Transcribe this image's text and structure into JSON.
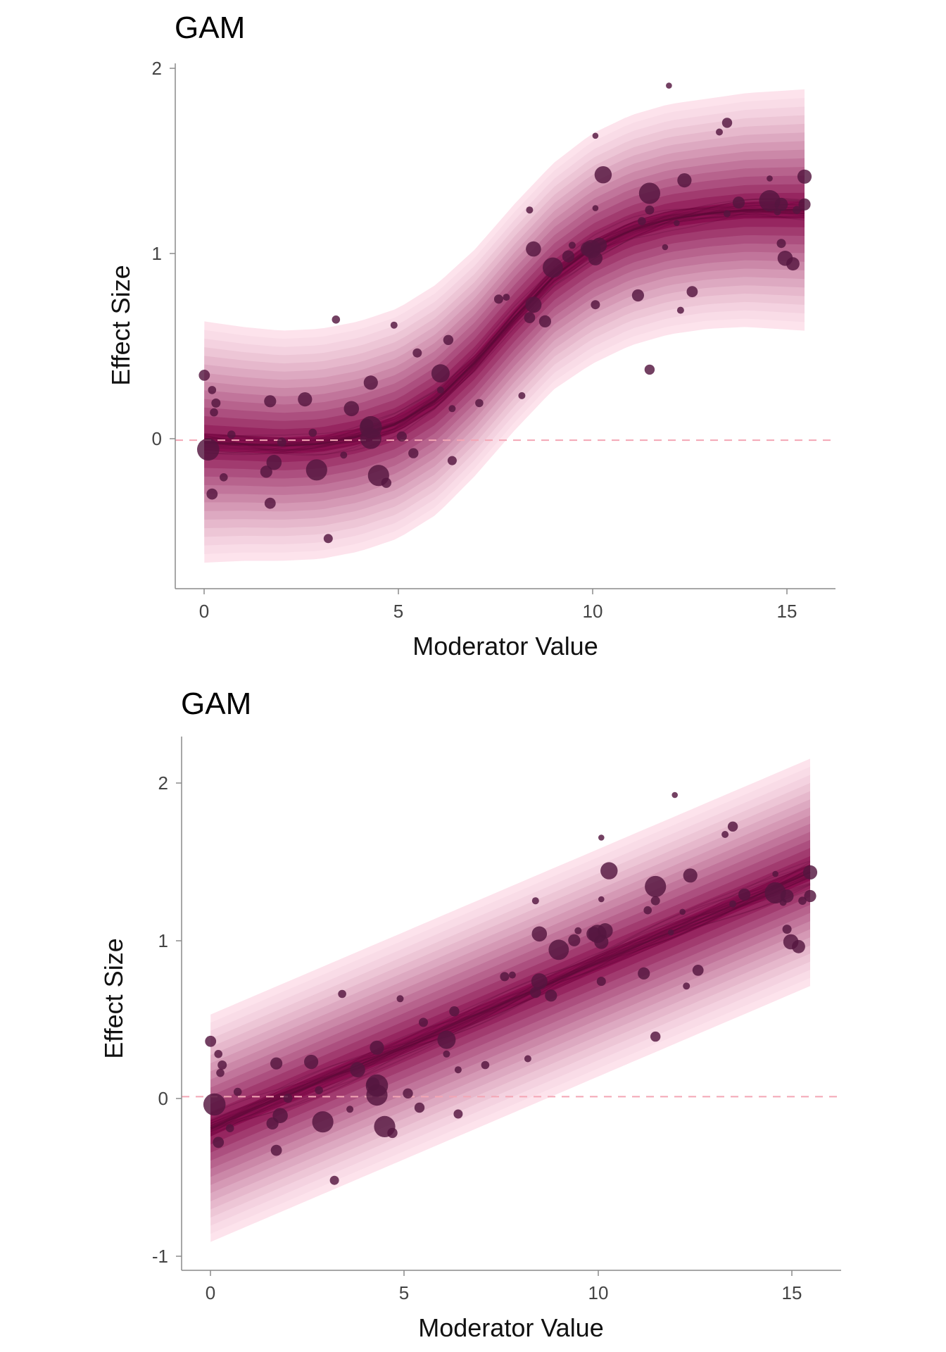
{
  "colors": {
    "band_outer": "#fde3ec",
    "band_inner": "#8a1050",
    "spaghetti": "#5c0a38",
    "points": "#54163f",
    "zero_line": "#f4a6b5"
  },
  "chart_data": [
    {
      "type": "scatter",
      "title": "GAM",
      "xlabel": "Moderator Value",
      "ylabel": "Effect Size",
      "xlim": [
        -0.75,
        16.3
      ],
      "ylim": [
        -0.8,
        2.03
      ],
      "xticks": [
        "0",
        "5",
        "10",
        "15"
      ],
      "yticks": [
        "0",
        "1",
        "2"
      ],
      "reference_line_y": 0,
      "fit": {
        "shape": "sigmoid",
        "x": [
          0.0,
          1.0,
          2.0,
          3.0,
          4.0,
          5.0,
          6.0,
          7.0,
          8.0,
          9.0,
          10.0,
          11.0,
          12.0,
          13.0,
          14.0,
          15.5
        ],
        "median": [
          -0.01,
          -0.02,
          -0.03,
          -0.02,
          0.02,
          0.09,
          0.22,
          0.42,
          0.66,
          0.88,
          1.03,
          1.13,
          1.19,
          1.22,
          1.24,
          1.24
        ],
        "outer_halfwidth": [
          0.65,
          0.63,
          0.62,
          0.62,
          0.62,
          0.62,
          0.62,
          0.61,
          0.61,
          0.61,
          0.62,
          0.62,
          0.62,
          0.62,
          0.63,
          0.65
        ]
      },
      "points": [
        {
          "x": 0.0,
          "y": 0.35,
          "size": 11
        },
        {
          "x": 0.1,
          "y": -0.05,
          "size": 22
        },
        {
          "x": 0.2,
          "y": 0.27,
          "size": 8
        },
        {
          "x": 0.25,
          "y": 0.15,
          "size": 8
        },
        {
          "x": 0.3,
          "y": 0.2,
          "size": 9
        },
        {
          "x": 0.2,
          "y": -0.29,
          "size": 11
        },
        {
          "x": 0.5,
          "y": -0.2,
          "size": 8
        },
        {
          "x": 0.7,
          "y": 0.03,
          "size": 8
        },
        {
          "x": 1.7,
          "y": 0.21,
          "size": 12
        },
        {
          "x": 1.6,
          "y": -0.17,
          "size": 12
        },
        {
          "x": 1.8,
          "y": -0.12,
          "size": 15
        },
        {
          "x": 1.7,
          "y": -0.34,
          "size": 11
        },
        {
          "x": 2.0,
          "y": -0.01,
          "size": 9
        },
        {
          "x": 2.6,
          "y": 0.22,
          "size": 14
        },
        {
          "x": 2.8,
          "y": 0.04,
          "size": 8
        },
        {
          "x": 2.9,
          "y": -0.16,
          "size": 21
        },
        {
          "x": 3.2,
          "y": -0.53,
          "size": 9
        },
        {
          "x": 3.4,
          "y": 0.65,
          "size": 8
        },
        {
          "x": 3.6,
          "y": -0.08,
          "size": 7
        },
        {
          "x": 3.8,
          "y": 0.17,
          "size": 15
        },
        {
          "x": 4.2,
          "y": 0.08,
          "size": 13
        },
        {
          "x": 4.3,
          "y": 0.31,
          "size": 14
        },
        {
          "x": 4.3,
          "y": 0.07,
          "size": 22
        },
        {
          "x": 4.3,
          "y": 0.01,
          "size": 21
        },
        {
          "x": 4.5,
          "y": -0.19,
          "size": 21
        },
        {
          "x": 4.7,
          "y": -0.23,
          "size": 10
        },
        {
          "x": 4.9,
          "y": 0.62,
          "size": 7
        },
        {
          "x": 5.1,
          "y": 0.02,
          "size": 10
        },
        {
          "x": 5.4,
          "y": -0.07,
          "size": 10
        },
        {
          "x": 5.5,
          "y": 0.47,
          "size": 9
        },
        {
          "x": 6.1,
          "y": 0.36,
          "size": 18
        },
        {
          "x": 6.3,
          "y": 0.54,
          "size": 10
        },
        {
          "x": 6.4,
          "y": -0.11,
          "size": 9
        },
        {
          "x": 6.4,
          "y": 0.17,
          "size": 7
        },
        {
          "x": 6.1,
          "y": 0.27,
          "size": 7
        },
        {
          "x": 7.1,
          "y": 0.2,
          "size": 8
        },
        {
          "x": 7.6,
          "y": 0.76,
          "size": 9
        },
        {
          "x": 7.8,
          "y": 0.77,
          "size": 7
        },
        {
          "x": 8.2,
          "y": 0.24,
          "size": 7
        },
        {
          "x": 8.4,
          "y": 1.24,
          "size": 7
        },
        {
          "x": 8.4,
          "y": 0.66,
          "size": 11
        },
        {
          "x": 8.5,
          "y": 1.03,
          "size": 15
        },
        {
          "x": 8.5,
          "y": 0.73,
          "size": 16
        },
        {
          "x": 8.8,
          "y": 0.64,
          "size": 12
        },
        {
          "x": 9.0,
          "y": 0.93,
          "size": 20
        },
        {
          "x": 9.4,
          "y": 0.99,
          "size": 12
        },
        {
          "x": 9.5,
          "y": 1.05,
          "size": 7
        },
        {
          "x": 9.9,
          "y": 1.03,
          "size": 14
        },
        {
          "x": 10.0,
          "y": 1.03,
          "size": 18
        },
        {
          "x": 10.2,
          "y": 1.05,
          "size": 15
        },
        {
          "x": 10.1,
          "y": 0.98,
          "size": 14
        },
        {
          "x": 10.1,
          "y": 1.64,
          "size": 6
        },
        {
          "x": 10.1,
          "y": 1.25,
          "size": 6
        },
        {
          "x": 10.1,
          "y": 0.73,
          "size": 9
        },
        {
          "x": 10.3,
          "y": 1.43,
          "size": 17
        },
        {
          "x": 11.2,
          "y": 0.78,
          "size": 12
        },
        {
          "x": 11.3,
          "y": 1.18,
          "size": 8
        },
        {
          "x": 11.5,
          "y": 1.33,
          "size": 21
        },
        {
          "x": 11.5,
          "y": 1.24,
          "size": 9
        },
        {
          "x": 11.5,
          "y": 0.38,
          "size": 10
        },
        {
          "x": 12.0,
          "y": 1.91,
          "size": 6
        },
        {
          "x": 11.9,
          "y": 1.04,
          "size": 6
        },
        {
          "x": 12.2,
          "y": 1.17,
          "size": 6
        },
        {
          "x": 12.4,
          "y": 1.4,
          "size": 14
        },
        {
          "x": 12.3,
          "y": 0.7,
          "size": 7
        },
        {
          "x": 12.6,
          "y": 0.8,
          "size": 11
        },
        {
          "x": 13.3,
          "y": 1.66,
          "size": 7
        },
        {
          "x": 13.5,
          "y": 1.71,
          "size": 10
        },
        {
          "x": 13.5,
          "y": 1.22,
          "size": 7
        },
        {
          "x": 13.8,
          "y": 1.28,
          "size": 12
        },
        {
          "x": 14.6,
          "y": 1.29,
          "size": 21
        },
        {
          "x": 14.6,
          "y": 1.41,
          "size": 6
        },
        {
          "x": 14.9,
          "y": 1.27,
          "size": 13
        },
        {
          "x": 14.9,
          "y": 1.06,
          "size": 9
        },
        {
          "x": 15.0,
          "y": 0.98,
          "size": 15
        },
        {
          "x": 15.2,
          "y": 0.95,
          "size": 13
        },
        {
          "x": 15.3,
          "y": 1.24,
          "size": 8
        },
        {
          "x": 15.5,
          "y": 1.42,
          "size": 14
        },
        {
          "x": 15.5,
          "y": 1.27,
          "size": 12
        },
        {
          "x": 14.8,
          "y": 1.23,
          "size": 7
        }
      ]
    },
    {
      "type": "scatter",
      "title": "GAM",
      "xlabel": "Moderator Value",
      "ylabel": "Effect Size",
      "xlim": [
        -0.75,
        16.3
      ],
      "ylim": [
        -1.1,
        2.28
      ],
      "xticks": [
        "0",
        "5",
        "10",
        "15"
      ],
      "yticks": [
        "-1",
        "0",
        "1",
        "2"
      ],
      "reference_line_y": 0,
      "fit": {
        "shape": "linear",
        "x": [
          0.0,
          15.5
        ],
        "median": [
          -0.2,
          1.42
        ],
        "outer_halfwidth": [
          0.72,
          0.72
        ]
      },
      "points": [
        {
          "x": 0.0,
          "y": 0.35,
          "size": 11
        },
        {
          "x": 0.1,
          "y": -0.05,
          "size": 22
        },
        {
          "x": 0.2,
          "y": 0.27,
          "size": 8
        },
        {
          "x": 0.25,
          "y": 0.15,
          "size": 8
        },
        {
          "x": 0.3,
          "y": 0.2,
          "size": 9
        },
        {
          "x": 0.2,
          "y": -0.29,
          "size": 11
        },
        {
          "x": 0.5,
          "y": -0.2,
          "size": 8
        },
        {
          "x": 0.7,
          "y": 0.03,
          "size": 8
        },
        {
          "x": 1.7,
          "y": 0.21,
          "size": 12
        },
        {
          "x": 1.6,
          "y": -0.17,
          "size": 12
        },
        {
          "x": 1.8,
          "y": -0.12,
          "size": 15
        },
        {
          "x": 1.7,
          "y": -0.34,
          "size": 11
        },
        {
          "x": 2.0,
          "y": -0.01,
          "size": 9
        },
        {
          "x": 2.6,
          "y": 0.22,
          "size": 14
        },
        {
          "x": 2.8,
          "y": 0.04,
          "size": 8
        },
        {
          "x": 2.9,
          "y": -0.16,
          "size": 21
        },
        {
          "x": 3.2,
          "y": -0.53,
          "size": 9
        },
        {
          "x": 3.4,
          "y": 0.65,
          "size": 8
        },
        {
          "x": 3.6,
          "y": -0.08,
          "size": 7
        },
        {
          "x": 3.8,
          "y": 0.17,
          "size": 15
        },
        {
          "x": 4.2,
          "y": 0.08,
          "size": 13
        },
        {
          "x": 4.3,
          "y": 0.31,
          "size": 14
        },
        {
          "x": 4.3,
          "y": 0.07,
          "size": 22
        },
        {
          "x": 4.3,
          "y": 0.01,
          "size": 21
        },
        {
          "x": 4.5,
          "y": -0.19,
          "size": 21
        },
        {
          "x": 4.7,
          "y": -0.23,
          "size": 10
        },
        {
          "x": 4.9,
          "y": 0.62,
          "size": 7
        },
        {
          "x": 5.1,
          "y": 0.02,
          "size": 10
        },
        {
          "x": 5.4,
          "y": -0.07,
          "size": 10
        },
        {
          "x": 5.5,
          "y": 0.47,
          "size": 9
        },
        {
          "x": 6.1,
          "y": 0.36,
          "size": 18
        },
        {
          "x": 6.3,
          "y": 0.54,
          "size": 10
        },
        {
          "x": 6.4,
          "y": -0.11,
          "size": 9
        },
        {
          "x": 6.4,
          "y": 0.17,
          "size": 7
        },
        {
          "x": 6.1,
          "y": 0.27,
          "size": 7
        },
        {
          "x": 7.1,
          "y": 0.2,
          "size": 8
        },
        {
          "x": 7.6,
          "y": 0.76,
          "size": 9
        },
        {
          "x": 7.8,
          "y": 0.77,
          "size": 7
        },
        {
          "x": 8.2,
          "y": 0.24,
          "size": 7
        },
        {
          "x": 8.4,
          "y": 1.24,
          "size": 7
        },
        {
          "x": 8.4,
          "y": 0.66,
          "size": 11
        },
        {
          "x": 8.5,
          "y": 1.03,
          "size": 15
        },
        {
          "x": 8.5,
          "y": 0.73,
          "size": 16
        },
        {
          "x": 8.8,
          "y": 0.64,
          "size": 12
        },
        {
          "x": 9.0,
          "y": 0.93,
          "size": 20
        },
        {
          "x": 9.4,
          "y": 0.99,
          "size": 12
        },
        {
          "x": 9.5,
          "y": 1.05,
          "size": 7
        },
        {
          "x": 9.9,
          "y": 1.03,
          "size": 14
        },
        {
          "x": 10.0,
          "y": 1.03,
          "size": 18
        },
        {
          "x": 10.2,
          "y": 1.05,
          "size": 15
        },
        {
          "x": 10.1,
          "y": 0.98,
          "size": 14
        },
        {
          "x": 10.1,
          "y": 1.64,
          "size": 6
        },
        {
          "x": 10.1,
          "y": 1.25,
          "size": 6
        },
        {
          "x": 10.1,
          "y": 0.73,
          "size": 9
        },
        {
          "x": 10.3,
          "y": 1.43,
          "size": 17
        },
        {
          "x": 11.2,
          "y": 0.78,
          "size": 12
        },
        {
          "x": 11.3,
          "y": 1.18,
          "size": 8
        },
        {
          "x": 11.5,
          "y": 1.33,
          "size": 21
        },
        {
          "x": 11.5,
          "y": 1.24,
          "size": 9
        },
        {
          "x": 11.5,
          "y": 0.38,
          "size": 10
        },
        {
          "x": 12.0,
          "y": 1.91,
          "size": 6
        },
        {
          "x": 11.9,
          "y": 1.04,
          "size": 6
        },
        {
          "x": 12.2,
          "y": 1.17,
          "size": 6
        },
        {
          "x": 12.4,
          "y": 1.4,
          "size": 14
        },
        {
          "x": 12.3,
          "y": 0.7,
          "size": 7
        },
        {
          "x": 12.6,
          "y": 0.8,
          "size": 11
        },
        {
          "x": 13.3,
          "y": 1.66,
          "size": 7
        },
        {
          "x": 13.5,
          "y": 1.71,
          "size": 10
        },
        {
          "x": 13.5,
          "y": 1.22,
          "size": 7
        },
        {
          "x": 13.8,
          "y": 1.28,
          "size": 12
        },
        {
          "x": 14.6,
          "y": 1.29,
          "size": 21
        },
        {
          "x": 14.6,
          "y": 1.41,
          "size": 6
        },
        {
          "x": 14.9,
          "y": 1.27,
          "size": 13
        },
        {
          "x": 14.9,
          "y": 1.06,
          "size": 9
        },
        {
          "x": 15.0,
          "y": 0.98,
          "size": 15
        },
        {
          "x": 15.2,
          "y": 0.95,
          "size": 13
        },
        {
          "x": 15.3,
          "y": 1.24,
          "size": 8
        },
        {
          "x": 15.5,
          "y": 1.42,
          "size": 14
        },
        {
          "x": 15.5,
          "y": 1.27,
          "size": 12
        },
        {
          "x": 14.8,
          "y": 1.23,
          "size": 7
        }
      ]
    }
  ]
}
